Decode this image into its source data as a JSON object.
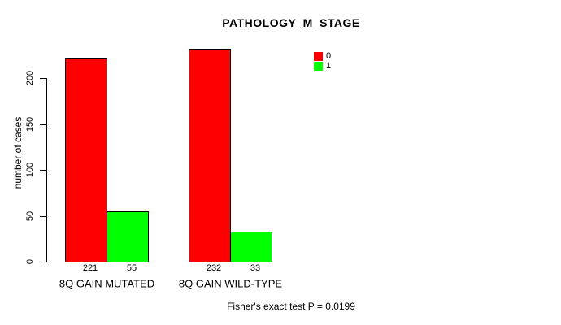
{
  "footer": "Fisher's exact test P = 0.0199",
  "chart_data": {
    "type": "bar",
    "title": "PATHOLOGY_M_STAGE",
    "categories": [
      "8Q GAIN MUTATED",
      "8Q GAIN WILD-TYPE"
    ],
    "series": [
      {
        "name": "0",
        "color": "#ff0000",
        "values": [
          221,
          232
        ]
      },
      {
        "name": "1",
        "color": "#00ff00",
        "values": [
          55,
          33
        ]
      }
    ],
    "ylabel": "number of cases",
    "ylim": [
      0,
      200
    ],
    "yticks": [
      0,
      50,
      100,
      150,
      200
    ],
    "legend_position": "top-right",
    "grid": false,
    "bar_value_labels_visible": true
  }
}
